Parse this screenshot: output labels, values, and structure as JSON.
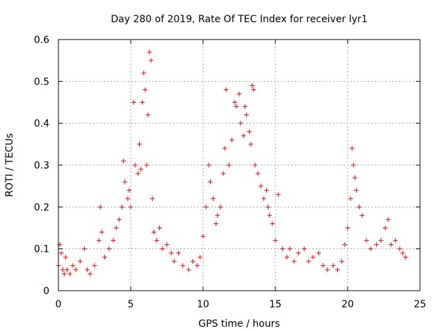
{
  "chart_data": {
    "type": "scatter",
    "title": "Day 280 of 2019, Rate Of TEC Index for receiver lyr1",
    "xlabel": "GPS time / hours",
    "ylabel": "ROTI / TECUs",
    "xlim": [
      0,
      25
    ],
    "ylim": [
      0,
      0.6
    ],
    "x_ticks": [
      "0",
      "5",
      "10",
      "15",
      "20",
      "25"
    ],
    "y_ticks": [
      "0",
      "0.1",
      "0.2",
      "0.3",
      "0.4",
      "0.5",
      "0.6"
    ],
    "grid": true,
    "marker": "+",
    "color": "#ff0000",
    "series": [
      {
        "name": "ROTI",
        "x": [
          0.0,
          0.1,
          0.2,
          0.3,
          0.4,
          0.5,
          0.6,
          0.8,
          1.0,
          1.2,
          1.5,
          1.8,
          2.0,
          2.2,
          2.5,
          2.8,
          2.9,
          3.0,
          3.2,
          3.5,
          3.8,
          4.0,
          4.2,
          4.4,
          4.5,
          4.6,
          4.8,
          4.9,
          5.0,
          5.2,
          5.3,
          5.5,
          5.6,
          5.7,
          5.8,
          5.9,
          6.0,
          6.1,
          6.2,
          6.3,
          6.4,
          6.5,
          6.6,
          6.8,
          7.0,
          7.2,
          7.5,
          7.8,
          8.0,
          8.3,
          8.6,
          9.0,
          9.3,
          9.6,
          9.8,
          10.0,
          10.2,
          10.4,
          10.5,
          10.7,
          10.9,
          11.0,
          11.2,
          11.4,
          11.5,
          11.6,
          11.8,
          12.0,
          12.2,
          12.3,
          12.5,
          12.6,
          12.8,
          12.9,
          13.0,
          13.2,
          13.3,
          13.4,
          13.5,
          13.6,
          13.8,
          14.0,
          14.2,
          14.4,
          14.5,
          14.6,
          14.8,
          15.0,
          15.2,
          15.5,
          15.8,
          16.0,
          16.3,
          16.6,
          17.0,
          17.3,
          17.6,
          18.0,
          18.3,
          18.6,
          19.0,
          19.3,
          19.6,
          19.8,
          20.0,
          20.2,
          20.3,
          20.4,
          20.5,
          20.6,
          20.8,
          21.0,
          21.3,
          21.6,
          22.0,
          22.3,
          22.6,
          22.8,
          23.0,
          23.3,
          23.6,
          23.8,
          24.0
        ],
        "values": [
          0.06,
          0.11,
          0.09,
          0.05,
          0.04,
          0.08,
          0.05,
          0.04,
          0.06,
          0.05,
          0.07,
          0.1,
          0.05,
          0.04,
          0.06,
          0.12,
          0.2,
          0.14,
          0.08,
          0.1,
          0.12,
          0.15,
          0.17,
          0.2,
          0.31,
          0.26,
          0.22,
          0.24,
          0.2,
          0.45,
          0.3,
          0.28,
          0.35,
          0.29,
          0.45,
          0.52,
          0.48,
          0.3,
          0.42,
          0.57,
          0.55,
          0.22,
          0.14,
          0.12,
          0.15,
          0.1,
          0.11,
          0.09,
          0.07,
          0.09,
          0.06,
          0.05,
          0.07,
          0.06,
          0.08,
          0.13,
          0.2,
          0.3,
          0.26,
          0.22,
          0.16,
          0.18,
          0.2,
          0.28,
          0.34,
          0.48,
          0.3,
          0.36,
          0.45,
          0.44,
          0.47,
          0.4,
          0.37,
          0.44,
          0.42,
          0.38,
          0.35,
          0.49,
          0.48,
          0.3,
          0.28,
          0.25,
          0.22,
          0.24,
          0.2,
          0.18,
          0.16,
          0.12,
          0.23,
          0.1,
          0.08,
          0.1,
          0.07,
          0.09,
          0.1,
          0.07,
          0.08,
          0.09,
          0.06,
          0.05,
          0.06,
          0.05,
          0.07,
          0.11,
          0.15,
          0.22,
          0.34,
          0.3,
          0.27,
          0.24,
          0.2,
          0.18,
          0.12,
          0.1,
          0.11,
          0.12,
          0.15,
          0.17,
          0.11,
          0.12,
          0.1,
          0.09,
          0.08
        ]
      }
    ]
  }
}
